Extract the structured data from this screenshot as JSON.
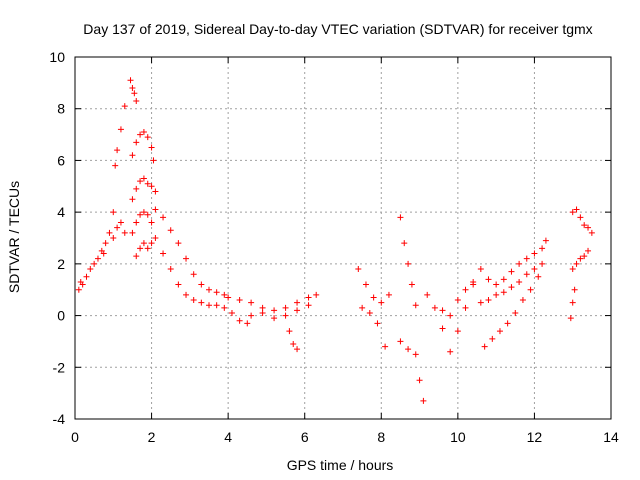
{
  "chart_data": {
    "type": "scatter",
    "title": "Day 137 of 2019, Sidereal Day-to-day VTEC variation (SDTVAR) for receiver tgmx",
    "xlabel": "GPS time / hours",
    "ylabel": "SDTVAR / TECUs",
    "xlim": [
      0,
      14
    ],
    "ylim": [
      -4,
      10
    ],
    "xticks": [
      0,
      2,
      4,
      6,
      8,
      10,
      12,
      14
    ],
    "yticks": [
      -4,
      -2,
      0,
      2,
      4,
      6,
      8,
      10
    ],
    "grid": true,
    "marker": "+",
    "series": [
      {
        "name": "SDTVAR",
        "color": "#ff0000",
        "segments": [
          {
            "x": [
              0.1,
              0.15,
              0.2,
              0.3,
              0.4,
              0.5,
              0.6,
              0.7,
              0.75,
              0.8
            ],
            "y": [
              1.0,
              1.3,
              1.2,
              1.5,
              1.8,
              2.0,
              2.2,
              2.5,
              2.4,
              2.8
            ]
          },
          {
            "x": [
              0.9,
              1.0,
              1.05,
              1.1,
              1.2,
              1.3
            ],
            "y": [
              3.2,
              4.0,
              5.8,
              6.4,
              7.2,
              8.1
            ]
          },
          {
            "x": [
              1.0,
              1.1,
              1.2,
              1.3
            ],
            "y": [
              3.0,
              3.4,
              3.6,
              3.2
            ]
          },
          {
            "x": [
              1.45,
              1.5,
              1.55,
              1.6
            ],
            "y": [
              9.1,
              8.8,
              8.6,
              8.3
            ]
          },
          {
            "x": [
              1.5,
              1.6,
              1.7,
              1.8,
              1.9,
              2.0,
              2.05
            ],
            "y": [
              6.2,
              6.7,
              7.0,
              7.1,
              6.9,
              6.5,
              6.0
            ]
          },
          {
            "x": [
              1.5,
              1.6,
              1.7,
              1.8,
              1.9,
              2.0,
              2.1
            ],
            "y": [
              4.5,
              4.9,
              5.2,
              5.3,
              5.1,
              5.0,
              4.8
            ]
          },
          {
            "x": [
              1.5,
              1.6,
              1.7,
              1.8,
              1.9,
              2.0
            ],
            "y": [
              3.2,
              3.6,
              3.9,
              4.0,
              3.9,
              3.6
            ]
          },
          {
            "x": [
              1.6,
              1.7,
              1.8,
              1.9,
              2.0,
              2.1
            ],
            "y": [
              2.3,
              2.6,
              2.8,
              2.6,
              2.8,
              3.0
            ]
          },
          {
            "x": [
              2.1,
              2.3,
              2.5,
              2.7,
              2.9,
              3.1,
              3.3,
              3.5,
              3.7,
              3.9
            ],
            "y": [
              4.1,
              3.8,
              3.3,
              2.8,
              2.2,
              1.6,
              1.2,
              1.0,
              0.9,
              0.8
            ]
          },
          {
            "x": [
              2.3,
              2.5,
              2.7,
              2.9,
              3.1,
              3.3,
              3.5,
              3.7,
              3.9,
              4.1,
              4.3,
              4.5
            ],
            "y": [
              2.4,
              1.8,
              1.2,
              0.8,
              0.6,
              0.5,
              0.4,
              0.4,
              0.3,
              0.1,
              -0.2,
              -0.3
            ]
          },
          {
            "x": [
              4.0,
              4.3,
              4.6,
              4.9,
              5.2,
              5.5,
              5.8,
              6.1,
              6.3
            ],
            "y": [
              0.7,
              0.6,
              0.5,
              0.3,
              0.2,
              0.3,
              0.5,
              0.7,
              0.8
            ]
          },
          {
            "x": [
              4.6,
              4.9,
              5.2,
              5.5,
              5.8,
              6.1
            ],
            "y": [
              0.0,
              0.1,
              -0.1,
              0.0,
              0.2,
              0.4
            ]
          },
          {
            "x": [
              5.6,
              5.7,
              5.8
            ],
            "y": [
              -0.6,
              -1.1,
              -1.3
            ]
          },
          {
            "x": [
              7.4,
              7.6,
              7.8,
              8.0,
              8.2
            ],
            "y": [
              1.8,
              1.2,
              0.7,
              0.5,
              0.8
            ]
          },
          {
            "x": [
              7.5,
              7.7,
              7.9,
              8.1
            ],
            "y": [
              0.3,
              0.1,
              -0.3,
              -1.2
            ]
          },
          {
            "x": [
              8.5,
              8.6,
              8.7,
              8.8,
              8.9
            ],
            "y": [
              3.8,
              2.8,
              2.0,
              1.2,
              0.4
            ]
          },
          {
            "x": [
              8.5,
              8.7,
              8.9,
              9.0,
              9.1
            ],
            "y": [
              -1.0,
              -1.3,
              -1.5,
              -2.5,
              -3.3
            ]
          },
          {
            "x": [
              9.2,
              9.4,
              9.6,
              9.8,
              10.0,
              10.2,
              10.4
            ],
            "y": [
              0.8,
              0.3,
              -0.5,
              -1.4,
              -0.6,
              0.3,
              1.2
            ]
          },
          {
            "x": [
              9.6,
              9.8,
              10.0,
              10.2,
              10.4
            ],
            "y": [
              0.2,
              0.0,
              0.6,
              1.0,
              1.3
            ]
          },
          {
            "x": [
              10.6,
              10.8,
              11.0,
              11.2,
              11.4,
              11.6,
              11.8,
              12.0,
              12.2,
              12.3
            ],
            "y": [
              1.8,
              1.4,
              1.2,
              1.4,
              1.7,
              2.0,
              2.2,
              2.4,
              2.6,
              2.9
            ]
          },
          {
            "x": [
              10.6,
              10.8,
              11.0,
              11.2,
              11.4,
              11.6,
              11.8,
              12.0,
              12.2
            ],
            "y": [
              0.5,
              0.6,
              0.8,
              0.9,
              1.1,
              1.3,
              1.6,
              1.8,
              2.0
            ]
          },
          {
            "x": [
              10.7,
              10.9,
              11.1,
              11.3,
              11.5,
              11.7,
              11.9,
              12.1
            ],
            "y": [
              -1.2,
              -0.9,
              -0.6,
              -0.3,
              0.1,
              0.6,
              1.0,
              1.5
            ]
          },
          {
            "x": [
              13.0,
              13.1,
              13.2,
              13.3,
              13.4,
              13.5
            ],
            "y": [
              4.0,
              4.1,
              3.8,
              3.5,
              3.4,
              3.2
            ]
          },
          {
            "x": [
              13.0,
              13.1,
              13.2,
              13.3,
              13.4
            ],
            "y": [
              1.8,
              2.0,
              2.2,
              2.3,
              2.5
            ]
          },
          {
            "x": [
              12.95,
              13.0,
              13.05
            ],
            "y": [
              -0.1,
              0.5,
              1.0
            ]
          }
        ]
      }
    ]
  }
}
